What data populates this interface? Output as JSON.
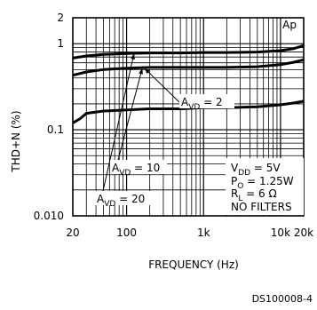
{
  "chart_data": {
    "type": "line",
    "title": "",
    "corner_label": "Ap",
    "xlabel": "FREQUENCY (Hz)",
    "ylabel": "THD+N (%)",
    "x_scale": "log",
    "y_scale": "log",
    "xlim": [
      20,
      20000
    ],
    "ylim": [
      0.01,
      2
    ],
    "x_ticks": [
      {
        "value": 20,
        "label": "20"
      },
      {
        "value": 100,
        "label": "100"
      },
      {
        "value": 1000,
        "label": "1k"
      },
      {
        "value": 10000,
        "label": "10k"
      },
      {
        "value": 20000,
        "label": "20k"
      }
    ],
    "y_ticks": [
      {
        "value": 2,
        "label": "2"
      },
      {
        "value": 1,
        "label": "1"
      },
      {
        "value": 0.1,
        "label": "0.1"
      },
      {
        "value": 0.01,
        "label": "0.010"
      }
    ],
    "grid": true,
    "series": [
      {
        "name": "A_VD = 20",
        "x": [
          20,
          30,
          50,
          100,
          200,
          500,
          1000,
          2000,
          5000,
          10000,
          15000,
          20000
        ],
        "y": [
          0.68,
          0.72,
          0.75,
          0.77,
          0.78,
          0.78,
          0.79,
          0.79,
          0.8,
          0.83,
          0.88,
          0.95
        ]
      },
      {
        "name": "A_VD = 10",
        "x": [
          20,
          30,
          50,
          100,
          200,
          500,
          1000,
          2000,
          5000,
          10000,
          15000,
          20000
        ],
        "y": [
          0.43,
          0.47,
          0.5,
          0.52,
          0.53,
          0.53,
          0.53,
          0.53,
          0.54,
          0.57,
          0.61,
          0.65
        ]
      },
      {
        "name": "A_VD = 2",
        "x": [
          20,
          25,
          30,
          50,
          100,
          200,
          500,
          1000,
          2000,
          5000,
          10000,
          15000,
          20000
        ],
        "y": [
          0.12,
          0.135,
          0.155,
          0.165,
          0.17,
          0.175,
          0.175,
          0.18,
          0.18,
          0.185,
          0.195,
          0.205,
          0.215
        ]
      }
    ],
    "series_labels": [
      {
        "prefix": "A",
        "sub": "VD",
        "value": " = 2",
        "for": 2
      },
      {
        "prefix": "A",
        "sub": "VD",
        "value": " = 10",
        "for": 1
      },
      {
        "prefix": "A",
        "sub": "VD",
        "value": " = 20",
        "for": 0
      }
    ],
    "conditions": [
      {
        "prefix": "V",
        "sub": "DD",
        "value": " = 5V"
      },
      {
        "prefix": "P",
        "sub": "O",
        "value": " = 1.25W"
      },
      {
        "prefix": "R",
        "sub": "L",
        "value": " = 6 Ω"
      },
      {
        "prefix": "NO FILTERS",
        "sub": "",
        "value": ""
      }
    ],
    "figure_id": "DS100008-4"
  }
}
